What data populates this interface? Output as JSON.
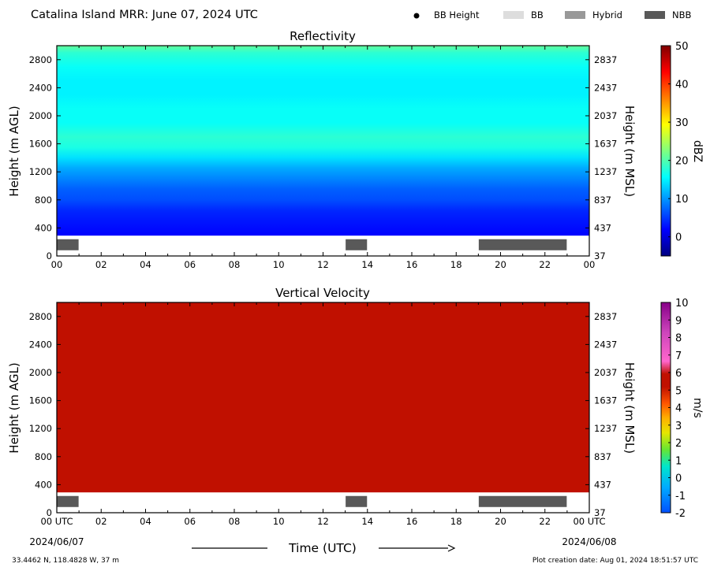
{
  "header": {
    "title": "Catalina Island MRR:  June 07, 2024 UTC",
    "legend": [
      {
        "label": "BB Height",
        "kind": "dot",
        "color": "#000000"
      },
      {
        "label": "BB",
        "kind": "box",
        "color": "#dddddd"
      },
      {
        "label": "Hybrid",
        "kind": "box",
        "color": "#999999"
      },
      {
        "label": "NBB",
        "kind": "box",
        "color": "#595959"
      }
    ]
  },
  "chart_data": [
    {
      "type": "heatmap",
      "title": "Reflectivity",
      "xlabel": "",
      "ylabel": "Height (m AGL)",
      "ylabel_right": "Height (m MSL)",
      "x_ticks": [
        "00",
        "02",
        "04",
        "06",
        "08",
        "10",
        "12",
        "14",
        "16",
        "18",
        "20",
        "22",
        "00"
      ],
      "xlim_hours": [
        0,
        24
      ],
      "ylim": [
        0,
        3000
      ],
      "y_ticks": [
        0,
        400,
        800,
        1200,
        1600,
        2000,
        2400,
        2800
      ],
      "y_ticks_right": [
        "37",
        "437",
        "837",
        "1237",
        "1637",
        "2037",
        "2437",
        "2837"
      ],
      "data_height_range_m": [
        290,
        3000
      ],
      "colorbar": {
        "label": "dBZ",
        "min": -5,
        "max": 50,
        "ticks": [
          0,
          10,
          20,
          30,
          40,
          50
        ]
      },
      "profile": [
        {
          "height": 300,
          "value": 2
        },
        {
          "height": 500,
          "value": 3
        },
        {
          "height": 650,
          "value": 4
        },
        {
          "height": 800,
          "value": 6
        },
        {
          "height": 950,
          "value": 7
        },
        {
          "height": 1100,
          "value": 9
        },
        {
          "height": 1250,
          "value": 11
        },
        {
          "height": 1400,
          "value": 14
        },
        {
          "height": 1550,
          "value": 17
        },
        {
          "height": 1700,
          "value": 18
        },
        {
          "height": 1900,
          "value": 16
        },
        {
          "height": 2100,
          "value": 16
        },
        {
          "height": 2300,
          "value": 15
        },
        {
          "height": 2500,
          "value": 15
        },
        {
          "height": 2700,
          "value": 16
        },
        {
          "height": 2900,
          "value": 18
        },
        {
          "height": 3000,
          "value": 21
        }
      ],
      "bright_band_bars": [
        {
          "type": "NBB",
          "start_hour": 0.0,
          "end_hour": 1.0
        },
        {
          "type": "NBB",
          "start_hour": 13.0,
          "end_hour": 14.0
        },
        {
          "type": "NBB",
          "start_hour": 19.0,
          "end_hour": 23.0
        }
      ]
    },
    {
      "type": "heatmap",
      "title": "Vertical Velocity",
      "xlabel": "Time (UTC)",
      "ylabel": "Height (m AGL)",
      "ylabel_right": "Height (m MSL)",
      "x_ticks": [
        "00 UTC",
        "02",
        "04",
        "06",
        "08",
        "10",
        "12",
        "14",
        "16",
        "18",
        "20",
        "22",
        "00 UTC"
      ],
      "x_dates": [
        "2024/06/07",
        "2024/06/08"
      ],
      "xlim_hours": [
        0,
        24
      ],
      "ylim": [
        0,
        3000
      ],
      "y_ticks": [
        0,
        400,
        800,
        1200,
        1600,
        2000,
        2400,
        2800
      ],
      "y_ticks_right": [
        "37",
        "437",
        "837",
        "1237",
        "1637",
        "2037",
        "2437",
        "2837"
      ],
      "data_height_range_m": [
        290,
        3000
      ],
      "uniform_value": 6,
      "colorbar": {
        "label": "m/s",
        "min": -2,
        "max": 10,
        "ticks": [
          -2,
          -1,
          0,
          1,
          2,
          3,
          4,
          5,
          6,
          7,
          8,
          9,
          10
        ]
      },
      "bright_band_bars": [
        {
          "type": "NBB",
          "start_hour": 0.0,
          "end_hour": 1.0
        },
        {
          "type": "NBB",
          "start_hour": 13.0,
          "end_hour": 14.0
        },
        {
          "type": "NBB",
          "start_hour": 19.0,
          "end_hour": 23.0
        }
      ]
    }
  ],
  "footer": {
    "location": "33.4462 N, 118.4828 W, 37 m",
    "creation": "Plot creation date: Aug 01, 2024 18:51:57 UTC",
    "time_label": "Time (UTC)"
  }
}
